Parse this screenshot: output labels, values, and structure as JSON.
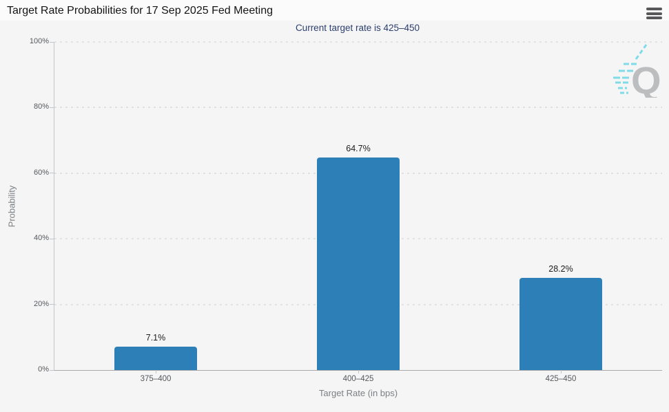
{
  "header": {
    "title": "Target Rate Probabilities for 17 Sep 2025 Fed Meeting",
    "menu_icon": "hamburger-menu-icon"
  },
  "colors": {
    "bar": "#2d7fb8",
    "subtitle": "#2c3e6d",
    "grid": "#e0e1e3",
    "axis": "#c3c4c6",
    "baseline": "#a7a8aa",
    "tick_label": "#54585c",
    "axis_title": "#7b7f83",
    "bar_label": "#1c1c1c",
    "logo_q": "#bcbdbf",
    "logo_dash": "#7fdbe8"
  },
  "chart_data": {
    "type": "bar",
    "categories": [
      "375–400",
      "400–425",
      "425–450"
    ],
    "values": [
      7.1,
      64.7,
      28.2
    ],
    "value_labels": [
      "7.1%",
      "64.7%",
      "28.2%"
    ],
    "title": "Target Rate Probabilities for 17 Sep 2025 Fed Meeting",
    "subtitle": "Current target rate is 425–450",
    "xlabel": "Target Rate (in bps)",
    "ylabel": "Probability",
    "ylim": [
      0,
      100
    ],
    "ytick_step": 20,
    "ytick_labels": [
      "0%",
      "20%",
      "40%",
      "60%",
      "80%",
      "100%"
    ],
    "grid": true,
    "legend": false
  },
  "watermark": {
    "name": "quikstrike-logo",
    "letter": "Q"
  }
}
